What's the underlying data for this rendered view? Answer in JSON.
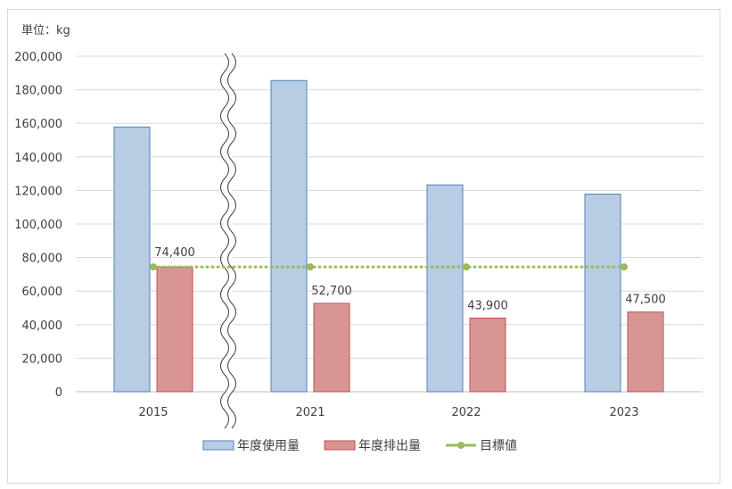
{
  "chart_data": {
    "type": "bar",
    "unit_label": "単位：kg",
    "categories": [
      "2015",
      "2021",
      "2022",
      "2023"
    ],
    "ylim": [
      0,
      200000
    ],
    "y_ticks": [
      0,
      20000,
      40000,
      60000,
      80000,
      100000,
      120000,
      140000,
      160000,
      180000,
      200000
    ],
    "y_tick_labels": [
      "0",
      "20,000",
      "40,000",
      "60,000",
      "80,000",
      "100,000",
      "120,000",
      "140,000",
      "160,000",
      "180,000",
      "200,000"
    ],
    "grid": true,
    "axis_break_between": [
      "2015",
      "2021"
    ],
    "legend_position": "bottom",
    "series": [
      {
        "name": "年度使用量",
        "kind": "bar",
        "color": "#b8cce4",
        "border": "#4f81bd",
        "values": [
          157800,
          185500,
          123300,
          117800
        ]
      },
      {
        "name": "年度排出量",
        "kind": "bar",
        "color": "#d99594",
        "border": "#c0504d",
        "values": [
          74400,
          52700,
          43900,
          47500
        ],
        "data_labels": [
          "74,400",
          "52,700",
          "43,900",
          "47,500"
        ]
      },
      {
        "name": "目標値",
        "kind": "line",
        "color": "#9bbb59",
        "dotted": true,
        "values": [
          74400,
          74400,
          74400,
          74400
        ]
      }
    ]
  }
}
